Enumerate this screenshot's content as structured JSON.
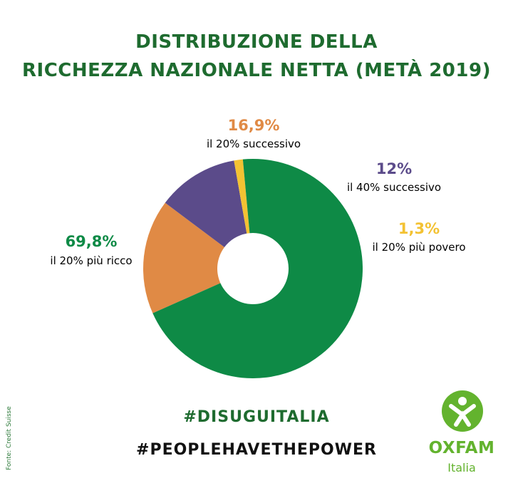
{
  "title": {
    "line1": "DISTRIBUZIONE DELLA",
    "line2": "RICCHEZZA NAZIONALE NETTA (METÀ 2019)"
  },
  "chart_data": {
    "type": "pie",
    "title": "DISTRIBUZIONE DELLA RICCHEZZA NAZIONALE NETTA (METÀ 2019)",
    "donut": true,
    "slices": [
      {
        "label": "il 20% successivo",
        "value": 16.9,
        "display": "16,9%",
        "color": "#e08a45"
      },
      {
        "label": "il 40% successivo",
        "value": 12,
        "display": "12%",
        "color": "#5b4b8a"
      },
      {
        "label": "il 20% più povero",
        "value": 1.3,
        "display": "1,3%",
        "color": "#f3c233"
      },
      {
        "label": "il 20% più ricco",
        "value": 69.8,
        "display": "69,8%",
        "color": "#0e8a46"
      }
    ]
  },
  "hashtags": [
    "#DISUGUITALIA",
    "#PEOPLEHAVETHEPOWER"
  ],
  "source": "Fonte: Credit Suisse",
  "logo": {
    "name": "OXFAM",
    "sub": "Italia",
    "color": "#63b32e",
    "icon": "oxfam-figure-icon"
  }
}
